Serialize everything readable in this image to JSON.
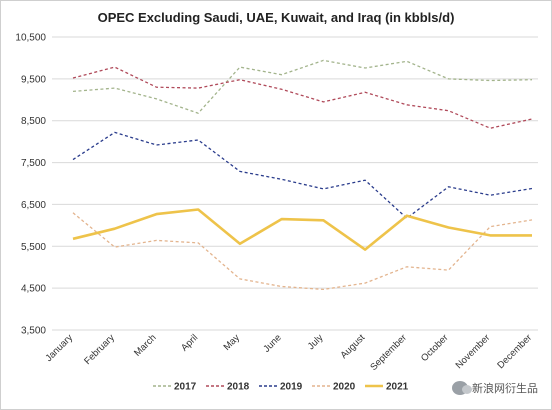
{
  "chart_data": {
    "type": "line",
    "title": "OPEC Excluding Saudi, UAE, Kuwait, and Iraq (in kbbls/d)",
    "categories": [
      "January",
      "February",
      "March",
      "April",
      "May",
      "June",
      "July",
      "August",
      "September",
      "October",
      "November",
      "December"
    ],
    "yticks": [
      "10,500",
      "9,500",
      "8,500",
      "7,500",
      "6,500",
      "5,500",
      "4,500",
      "3,500"
    ],
    "ylim": [
      3500,
      10500
    ],
    "grid": true,
    "legend_position": "bottom",
    "series": [
      {
        "name": "2017",
        "style": "dashed",
        "color": "#a3b48c",
        "values": [
          9200,
          9280,
          9020,
          8680,
          9780,
          9600,
          9940,
          9760,
          9920,
          9500,
          9460,
          9480
        ]
      },
      {
        "name": "2018",
        "style": "dashed",
        "color": "#b04a5a",
        "values": [
          9520,
          9780,
          9300,
          9280,
          9480,
          9250,
          8950,
          9180,
          8880,
          8740,
          8320,
          8540
        ]
      },
      {
        "name": "2019",
        "style": "dashed",
        "color": "#2a3c8c",
        "values": [
          7570,
          8220,
          7920,
          8040,
          7290,
          7100,
          6870,
          7080,
          6170,
          6920,
          6720,
          6880
        ]
      },
      {
        "name": "2020",
        "style": "dashed",
        "color": "#e3b48e",
        "values": [
          6300,
          5480,
          5640,
          5580,
          4720,
          4540,
          4470,
          4620,
          5010,
          4930,
          5970,
          6130
        ]
      },
      {
        "name": "2021",
        "style": "solid",
        "color": "#eec34a",
        "values": [
          5680,
          5920,
          6270,
          6380,
          5560,
          6150,
          6120,
          5420,
          6230,
          5950,
          5760,
          5760
        ]
      }
    ]
  },
  "watermark": {
    "text": "新浪网衍生品"
  }
}
